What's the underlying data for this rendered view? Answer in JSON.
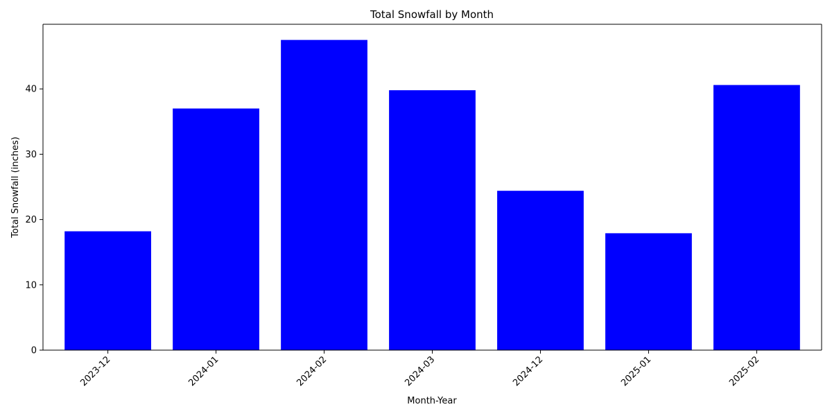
{
  "chart_data": {
    "type": "bar",
    "title": "Total Snowfall by Month",
    "xlabel": "Month-Year",
    "ylabel": "Total Snowfall (inches)",
    "categories": [
      "2023-12",
      "2024-01",
      "2024-02",
      "2024-03",
      "2024-12",
      "2025-01",
      "2025-02"
    ],
    "values": [
      18.2,
      37.0,
      47.5,
      39.8,
      24.4,
      17.9,
      40.6
    ],
    "ylim": [
      0,
      49.9
    ],
    "yticks": [
      0,
      10,
      20,
      30,
      40
    ],
    "bar_color": "#0000ff",
    "grid": false,
    "xtick_rotation": 45
  }
}
